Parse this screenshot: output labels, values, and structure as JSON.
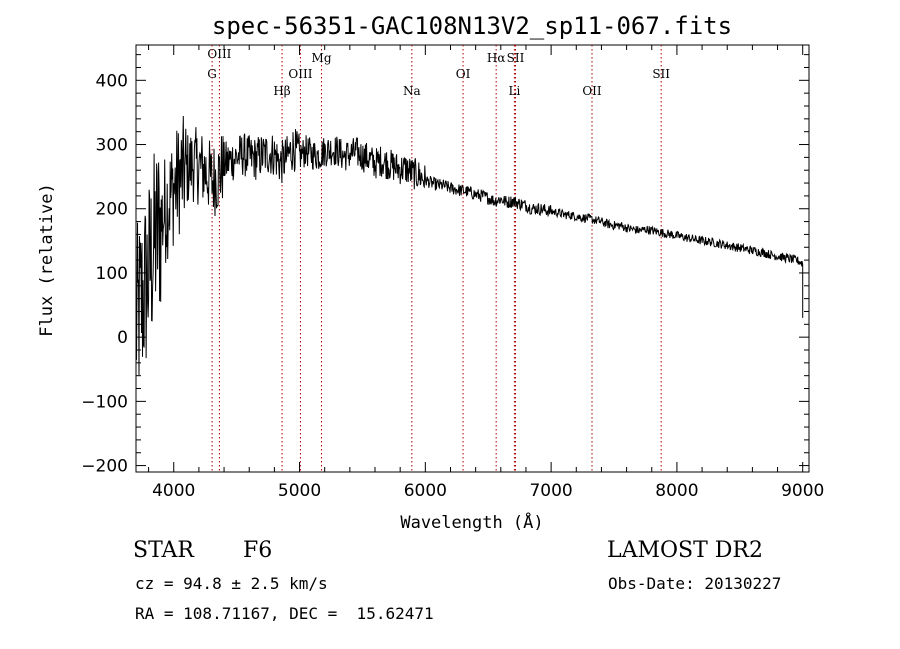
{
  "chart_data": {
    "type": "line",
    "title": "spec-56351-GAC108N13V2_sp11-067.fits",
    "xlabel": "Wavelength (Å)",
    "ylabel": "Flux (relative)",
    "xlim": [
      3700,
      9050
    ],
    "ylim": [
      -210,
      455
    ],
    "xticks": [
      4000,
      5000,
      6000,
      7000,
      8000,
      9000
    ],
    "yticks": [
      -200,
      -100,
      0,
      100,
      200,
      300,
      400
    ],
    "grid": false,
    "series": [
      {
        "x": [
          3700,
          3750,
          3800,
          3850,
          3900,
          3950,
          4000,
          4050,
          4100,
          4150,
          4200,
          4250,
          4300,
          4350,
          4400,
          4450,
          4500,
          4550,
          4600,
          4650,
          4700,
          4750,
          4800,
          4850,
          4900,
          4950,
          5000,
          5050,
          5100,
          5150,
          5200,
          5250,
          5300,
          5350,
          5400,
          5450,
          5500,
          5550,
          5600,
          5650,
          5700,
          5750,
          5800,
          5850,
          5900,
          5950,
          6000,
          6050,
          6100,
          6150,
          6200,
          6250,
          6300,
          6350,
          6400,
          6450,
          6500,
          6550,
          6600,
          6650,
          6700,
          6750,
          6800,
          6850,
          6900,
          6950,
          7000,
          7050,
          7100,
          7150,
          7200,
          7250,
          7300,
          7350,
          7400,
          7450,
          7500,
          7550,
          7600,
          7650,
          7700,
          7750,
          7800,
          7850,
          7900,
          7950,
          8000,
          8050,
          8100,
          8150,
          8200,
          8250,
          8300,
          8350,
          8400,
          8450,
          8500,
          8550,
          8600,
          8650,
          8700,
          8750,
          8800,
          8850,
          8900,
          8950,
          9000,
          9010
        ],
        "y": [
          20,
          60,
          100,
          150,
          180,
          210,
          230,
          250,
          260,
          270,
          265,
          260,
          245,
          250,
          270,
          275,
          280,
          285,
          280,
          278,
          283,
          286,
          285,
          270,
          280,
          295,
          282,
          290,
          285,
          283,
          290,
          292,
          290,
          282,
          285,
          288,
          282,
          278,
          270,
          275,
          270,
          266,
          262,
          262,
          255,
          252,
          245,
          240,
          237,
          236,
          232,
          230,
          228,
          226,
          222,
          220,
          217,
          212,
          215,
          210,
          212,
          208,
          205,
          200,
          200,
          198,
          196,
          194,
          191,
          190,
          188,
          186,
          185,
          182,
          180,
          176,
          174,
          174,
          170,
          168,
          166,
          168,
          166,
          164,
          162,
          160,
          158,
          156,
          154,
          152,
          150,
          149,
          147,
          145,
          143,
          141,
          139,
          137,
          135,
          133,
          131,
          128,
          126,
          124,
          122,
          120,
          115,
          30
        ]
      }
    ],
    "lines": [
      {
        "label": "OIII",
        "x": 4363
      },
      {
        "label": "G",
        "x": 4305
      },
      {
        "label": "Hβ",
        "x": 4861
      },
      {
        "label": "OIII",
        "x": 5007
      },
      {
        "label": "Mg",
        "x": 5175
      },
      {
        "label": "Na",
        "x": 5893
      },
      {
        "label": "OI",
        "x": 6300
      },
      {
        "label": "Hα",
        "x": 6563
      },
      {
        "label": "SII",
        "x": 6717
      },
      {
        "label": "Li",
        "x": 6708
      },
      {
        "label": "OII",
        "x": 7325
      },
      {
        "label": "SII",
        "x": 7875
      }
    ]
  },
  "info": {
    "class": "STAR",
    "subclass": "F6",
    "survey": "LAMOST DR2",
    "cz": "cz = 94.8 ± 2.5 km/s",
    "obs_date": "Obs-Date: 20130227",
    "radec": "RA = 108.71167, DEC =  15.62471"
  }
}
